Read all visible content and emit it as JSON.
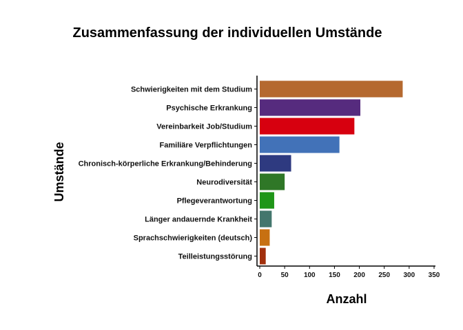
{
  "chart_data": {
    "type": "bar",
    "orientation": "horizontal",
    "title": "Zusammenfassung der individuellen Umstände",
    "xlabel": "Anzahl",
    "ylabel": "Umstände",
    "xlim": [
      0,
      350
    ],
    "xticks": [
      0,
      50,
      100,
      150,
      200,
      250,
      300,
      350
    ],
    "grid": false,
    "legend": "none",
    "bars": [
      {
        "category": "Schwierigkeiten mit dem Studium",
        "value": 287,
        "color": "#B5692F"
      },
      {
        "category": "Psychische Erkrankung",
        "value": 202,
        "color": "#562B7E"
      },
      {
        "category": "Vereinbarkeit Job/Studium",
        "value": 190,
        "color": "#D7000F"
      },
      {
        "category": "Familiäre Verpflichtungen",
        "value": 160,
        "color": "#4272B8"
      },
      {
        "category": "Chronisch-körperliche Erkrankung/Behinderung",
        "value": 63,
        "color": "#2E3A80"
      },
      {
        "category": "Neurodiversität",
        "value": 50,
        "color": "#2F7727"
      },
      {
        "category": "Pflegeverantwortung",
        "value": 29,
        "color": "#1F9618"
      },
      {
        "category": "Länger andauernde Krankheit",
        "value": 24,
        "color": "#43766D"
      },
      {
        "category": "Sprachschwierigkeiten (deutsch)",
        "value": 20,
        "color": "#C77012"
      },
      {
        "category": "Teilleistungsstörung",
        "value": 12,
        "color": "#A2300D"
      }
    ]
  }
}
